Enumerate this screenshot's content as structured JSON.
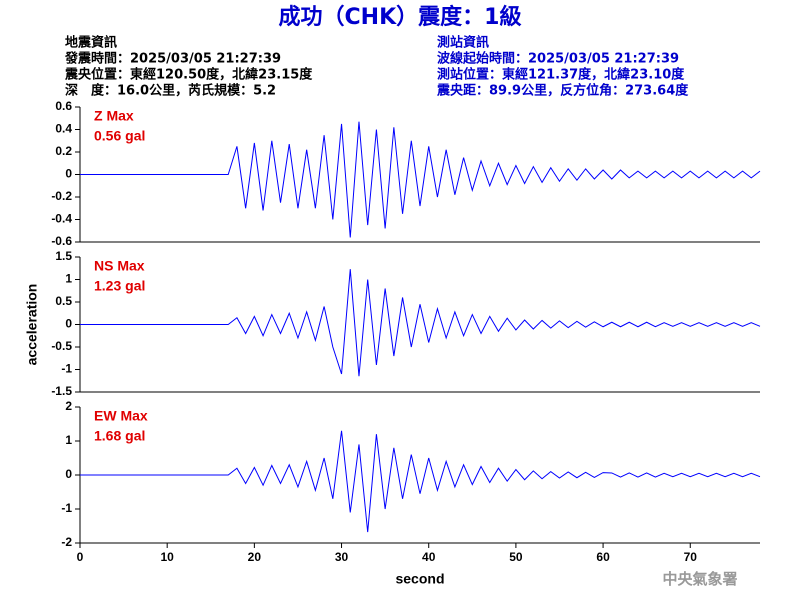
{
  "header": {
    "title": "成功（CHK）震度：1級",
    "quake_info": [
      "地震資訊",
      "發震時間：2025/03/05 21:27:39",
      "震央位置：東經120.50度，北緯23.15度",
      "深　度：16.0公里，芮氏規模：5.2"
    ],
    "station_info": [
      "測站資訊",
      "波線起始時間：2025/03/05 21:27:39",
      "測站位置：東經121.37度，北緯23.10度",
      "震央距：89.9公里，反方位角：273.64度"
    ]
  },
  "footer": "中央氣象署",
  "chart_data": [
    {
      "type": "line",
      "annotation": [
        "Z Max",
        "0.56 gal"
      ],
      "xlim": [
        0,
        78
      ],
      "ylim": [
        -0.6,
        0.6
      ],
      "yticks": [
        -0.6,
        -0.4,
        -0.2,
        0,
        0.2,
        0.4,
        0.6
      ],
      "x": [
        0,
        17,
        18,
        19,
        20,
        21,
        22,
        23,
        24,
        25,
        26,
        27,
        28,
        29,
        30,
        31,
        32,
        33,
        34,
        35,
        36,
        37,
        38,
        39,
        40,
        41,
        42,
        43,
        44,
        45,
        46,
        47,
        48,
        49,
        50,
        51,
        52,
        53,
        54,
        55,
        56,
        57,
        58,
        59,
        60,
        61,
        62,
        63,
        64,
        65,
        66,
        67,
        68,
        69,
        70,
        71,
        72,
        73,
        74,
        75,
        76,
        77,
        78
      ],
      "series": [
        {
          "color": "#0000ff",
          "values": [
            0,
            0,
            0.25,
            -0.3,
            0.28,
            -0.32,
            0.3,
            -0.25,
            0.27,
            -0.3,
            0.22,
            -0.3,
            0.35,
            -0.4,
            0.45,
            -0.56,
            0.47,
            -0.45,
            0.4,
            -0.48,
            0.42,
            -0.35,
            0.3,
            -0.28,
            0.25,
            -0.2,
            0.22,
            -0.18,
            0.15,
            -0.14,
            0.12,
            -0.1,
            0.1,
            -0.09,
            0.08,
            -0.08,
            0.07,
            -0.07,
            0.06,
            -0.06,
            0.05,
            -0.05,
            0.05,
            -0.04,
            0.04,
            -0.04,
            0.04,
            -0.03,
            0.03,
            -0.03,
            0.03,
            -0.03,
            0.03,
            -0.03,
            0.03,
            -0.03,
            0.03,
            -0.03,
            0.03,
            -0.03,
            0.03,
            -0.03,
            0.03
          ]
        }
      ]
    },
    {
      "type": "line",
      "annotation": [
        "NS Max",
        "1.23 gal"
      ],
      "ylabel": "acceleration",
      "xlim": [
        0,
        78
      ],
      "ylim": [
        -1.5,
        1.5
      ],
      "yticks": [
        -1.5,
        -1,
        -0.5,
        0,
        0.5,
        1,
        1.5
      ],
      "x": [
        0,
        17,
        18,
        19,
        20,
        21,
        22,
        23,
        24,
        25,
        26,
        27,
        28,
        29,
        30,
        31,
        32,
        33,
        34,
        35,
        36,
        37,
        38,
        39,
        40,
        41,
        42,
        43,
        44,
        45,
        46,
        47,
        48,
        49,
        50,
        51,
        52,
        53,
        54,
        55,
        56,
        57,
        58,
        59,
        60,
        61,
        62,
        63,
        64,
        65,
        66,
        67,
        68,
        69,
        70,
        71,
        72,
        73,
        74,
        75,
        76,
        77,
        78
      ],
      "series": [
        {
          "color": "#0000ff",
          "values": [
            0,
            0,
            0.15,
            -0.2,
            0.18,
            -0.25,
            0.22,
            -0.2,
            0.25,
            -0.3,
            0.28,
            -0.35,
            0.4,
            -0.5,
            -1.1,
            1.23,
            -1.15,
            1.0,
            -0.9,
            0.8,
            -0.7,
            0.6,
            -0.5,
            0.45,
            -0.4,
            0.35,
            -0.3,
            0.28,
            -0.25,
            0.22,
            -0.2,
            0.18,
            -0.15,
            0.14,
            -0.12,
            0.1,
            -0.1,
            0.09,
            -0.08,
            0.08,
            -0.07,
            0.07,
            -0.06,
            0.06,
            -0.05,
            0.05,
            -0.05,
            0.05,
            -0.05,
            0.05,
            -0.05,
            0.04,
            -0.04,
            0.04,
            -0.04,
            0.04,
            -0.04,
            0.04,
            -0.04,
            0.04,
            -0.04,
            0.04,
            -0.04
          ]
        }
      ]
    },
    {
      "type": "line",
      "annotation": [
        "EW Max",
        "1.68 gal"
      ],
      "xlabel": "second",
      "xlim": [
        0,
        78
      ],
      "xticks": [
        0,
        10,
        20,
        30,
        40,
        50,
        60,
        70
      ],
      "ylim": [
        -2,
        2
      ],
      "yticks": [
        -2,
        -1,
        0,
        1,
        2
      ],
      "x": [
        0,
        17,
        18,
        19,
        20,
        21,
        22,
        23,
        24,
        25,
        26,
        27,
        28,
        29,
        30,
        31,
        32,
        33,
        34,
        35,
        36,
        37,
        38,
        39,
        40,
        41,
        42,
        43,
        44,
        45,
        46,
        47,
        48,
        49,
        50,
        51,
        52,
        53,
        54,
        55,
        56,
        57,
        58,
        59,
        60,
        61,
        62,
        63,
        64,
        65,
        66,
        67,
        68,
        69,
        70,
        71,
        72,
        73,
        74,
        75,
        76,
        77,
        78
      ],
      "series": [
        {
          "color": "#0000ff",
          "values": [
            0,
            0,
            0.2,
            -0.25,
            0.22,
            -0.3,
            0.28,
            -0.25,
            0.3,
            -0.35,
            0.4,
            -0.45,
            0.5,
            -0.7,
            1.3,
            -1.1,
            0.9,
            -1.68,
            1.2,
            -1.0,
            0.8,
            -0.7,
            0.6,
            -0.55,
            0.5,
            -0.45,
            0.4,
            -0.35,
            0.3,
            -0.28,
            0.25,
            -0.22,
            0.2,
            -0.18,
            0.16,
            -0.14,
            0.12,
            -0.11,
            0.1,
            -0.09,
            0.09,
            -0.08,
            0.08,
            -0.07,
            0.07,
            0.06,
            -0.06,
            0.06,
            -0.06,
            0.06,
            -0.06,
            0.05,
            -0.05,
            0.05,
            -0.05,
            0.05,
            -0.05,
            0.05,
            -0.05,
            0.05,
            -0.05,
            0.05,
            -0.05
          ]
        }
      ]
    }
  ]
}
